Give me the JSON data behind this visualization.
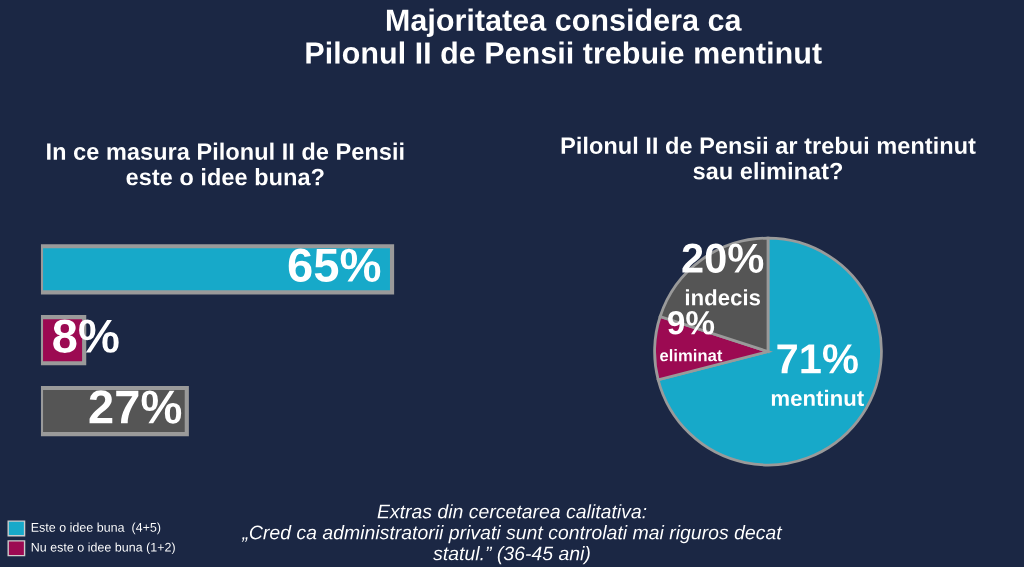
{
  "chart_data": [
    {
      "type": "bar",
      "orientation": "horizontal",
      "title": "Majoritatea considera ca\nPilonul II de Pensii trebuie mentinut",
      "subtitle": "In ce masura Pilonul II de Pensii\neste o idee buna?",
      "categories": [
        null,
        null,
        null
      ],
      "values": [
        65,
        8,
        27
      ],
      "colors": [
        "#17a9c9",
        "#9c0a52",
        "#555555"
      ],
      "value_labels": [
        "65%",
        "8%",
        "27%"
      ],
      "tick_labels": false,
      "annotations": [
        "Este o idee buna  (4+5)",
        "Nu este o idee buna (1+2)",
        "Extras din cercetarea calitativa:\n„Cred ca administratorii privati sunt controlati mai riguros decat\nstatul.” (36-45 ani)"
      ]
    },
    {
      "type": "pie",
      "title": "Pilonul II de Pensii ar trebui mentinut\nsau eliminat?",
      "categories": [
        "mentinut",
        "eliminat",
        "indecis"
      ],
      "values": [
        71,
        9,
        20
      ],
      "colors": [
        "#17a9c9",
        "#9c0a52",
        "#555555"
      ],
      "value_labels": [
        "71%",
        "9%",
        "20%"
      ]
    }
  ]
}
